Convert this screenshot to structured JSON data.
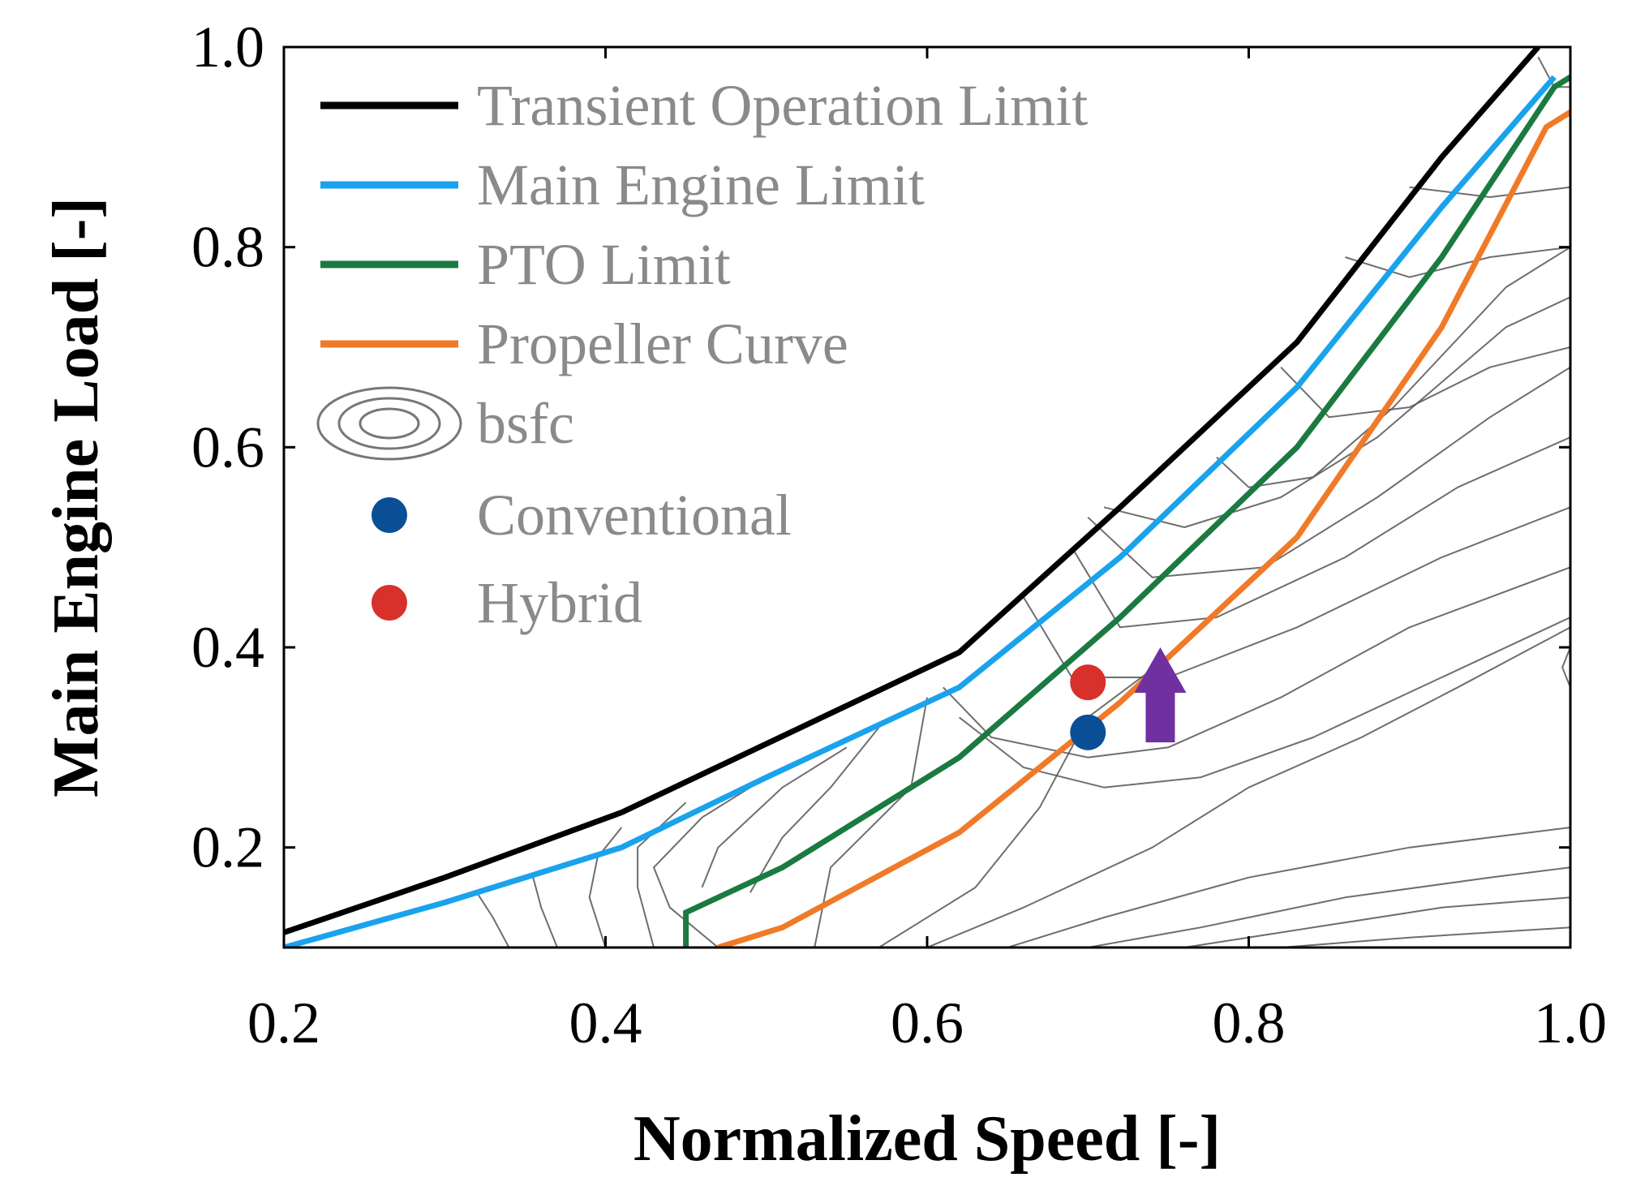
{
  "chart_data": {
    "type": "line",
    "title": "",
    "xlabel": "Normalized Speed [-]",
    "ylabel": "Main Engine Load [-]",
    "xlim": [
      0.2,
      1.0
    ],
    "ylim": [
      0.1,
      1.0
    ],
    "xticks": [
      0.2,
      0.4,
      0.6,
      0.8,
      1.0
    ],
    "xtick_labels": [
      "0.2",
      "0.4",
      "0.6",
      "0.8",
      "1.0"
    ],
    "yticks": [
      0.2,
      0.4,
      0.6,
      0.8,
      1.0
    ],
    "ytick_labels": [
      "0.2",
      "0.4",
      "0.6",
      "0.8",
      "1.0"
    ],
    "grid": false,
    "legend_position": "top-left",
    "series": [
      {
        "name": "Transient Operation Limit",
        "color": "#000000",
        "x": [
          0.2,
          0.3,
          0.41,
          0.62,
          0.72,
          0.83,
          0.92,
          0.98
        ],
        "y": [
          0.115,
          0.17,
          0.235,
          0.395,
          0.54,
          0.705,
          0.89,
          1.0
        ]
      },
      {
        "name": "Main Engine Limit",
        "color": "#1aa3ec",
        "x": [
          0.2,
          0.3,
          0.41,
          0.5,
          0.62,
          0.72,
          0.83,
          0.92,
          0.99
        ],
        "y": [
          0.1,
          0.145,
          0.2,
          0.27,
          0.36,
          0.49,
          0.66,
          0.84,
          0.97
        ]
      },
      {
        "name": "PTO Limit",
        "color": "#1a7a40",
        "x": [
          0.45,
          0.45,
          0.51,
          0.62,
          0.72,
          0.83,
          0.92,
          0.99,
          1.0
        ],
        "y": [
          0.1,
          0.135,
          0.18,
          0.29,
          0.43,
          0.6,
          0.79,
          0.96,
          0.97
        ]
      },
      {
        "name": "Propeller Curve",
        "color": "#f07a28",
        "x": [
          0.47,
          0.51,
          0.62,
          0.72,
          0.83,
          0.92,
          0.985,
          1.0
        ],
        "y": [
          0.1,
          0.12,
          0.215,
          0.345,
          0.51,
          0.72,
          0.92,
          0.935
        ]
      }
    ],
    "contours": {
      "name": "bsfc",
      "color": "#555555"
    },
    "points": [
      {
        "name": "Conventional",
        "x": 0.7,
        "y": 0.315,
        "color": "#0a4f96"
      },
      {
        "name": "Hybrid",
        "x": 0.7,
        "y": 0.365,
        "color": "#d8302a"
      }
    ],
    "annotations": [
      {
        "type": "arrow",
        "x": 0.745,
        "y_from": 0.305,
        "y_to": 0.4,
        "color": "#7030a0"
      }
    ]
  }
}
